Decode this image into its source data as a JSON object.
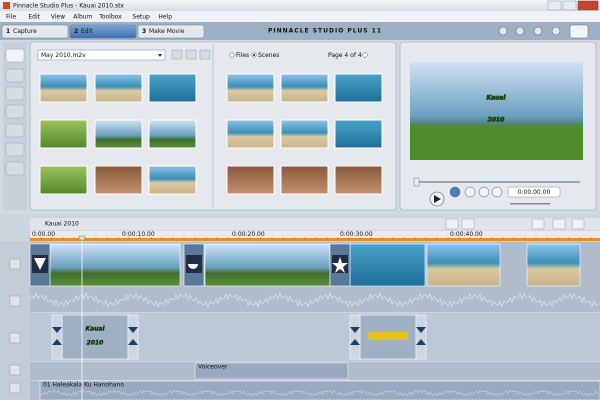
{
  "window": {
    "title": "Pinnacle Studio Plus - Kauai 2010.stx"
  },
  "menu": [
    "File",
    "Edit",
    "View",
    "Album",
    "Toolbox",
    "Setup",
    "Help"
  ],
  "tabs": [
    {
      "number": "1",
      "label": "Capture"
    },
    {
      "number": "2",
      "label": "Edit"
    },
    {
      "number": "3",
      "label": "Make Movie"
    }
  ],
  "brand": "PINNACLE STUDIO PLUS 11",
  "album": {
    "file": "May 2010.m2v",
    "view_options": [
      "Files",
      "Scenes"
    ],
    "page": "Page 4 of 4"
  },
  "preview": {
    "overlay": [
      "Kauai",
      "2010"
    ],
    "timecode": "0:00.00.00"
  },
  "timeline": {
    "title": "Kauai 2010",
    "ruler": [
      "0:00.00",
      "0:00:10.00",
      "0:00:20.00",
      "0:00:30.00",
      "0:00:40.00"
    ],
    "title_clip": [
      "Kauai",
      "2010"
    ],
    "voiceover": "Voiceover",
    "music": "01 Haleakala Ku Hanohano"
  }
}
